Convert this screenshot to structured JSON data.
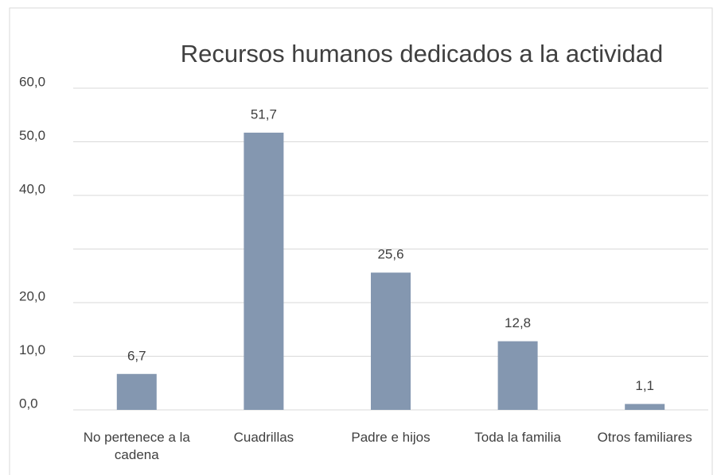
{
  "chart_data": {
    "type": "bar",
    "title": "Recursos humanos dedicados a la actividad",
    "categories": [
      "No pertenece a la cadena",
      "Cuadrillas",
      "Padre e hijos",
      "Toda la familia",
      "Otros familiares"
    ],
    "values": [
      6.7,
      51.7,
      25.6,
      12.8,
      1.1
    ],
    "value_labels": [
      "6,7",
      "51,7",
      "25,6",
      "12,8",
      "1,1"
    ],
    "color": "#8497b0",
    "ylim": [
      0,
      60
    ],
    "yticks": [
      {
        "value": 0,
        "label": "0,0"
      },
      {
        "value": 10,
        "label": "10,0"
      },
      {
        "value": 20,
        "label": "20,0"
      },
      {
        "value": 30,
        "label": null
      },
      {
        "value": 40,
        "label": "40,0"
      },
      {
        "value": 50,
        "label": "50,0"
      },
      {
        "value": 60,
        "label": "60,0"
      }
    ],
    "grid": true
  }
}
